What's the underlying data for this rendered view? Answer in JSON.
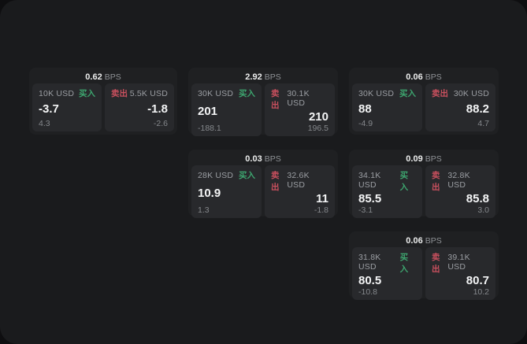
{
  "labels": {
    "bps": "BPS",
    "buy": "买入",
    "sell": "卖出"
  },
  "colors": {
    "buy": "#3da56f",
    "sell": "#c9505e"
  },
  "cards": [
    {
      "row": 1,
      "col": 1,
      "bps": "0.62",
      "buy": {
        "size": "10K USD",
        "value": "-3.7",
        "sub": "4.3"
      },
      "sell": {
        "size": "5.5K USD",
        "value": "-1.8",
        "sub": "-2.6"
      }
    },
    {
      "row": 1,
      "col": 2,
      "bps": "2.92",
      "buy": {
        "size": "30K USD",
        "value": "201",
        "sub": "-188.1"
      },
      "sell": {
        "size": "30.1K USD",
        "value": "210",
        "sub": "196.5"
      }
    },
    {
      "row": 1,
      "col": 3,
      "bps": "0.06",
      "buy": {
        "size": "30K USD",
        "value": "88",
        "sub": "-4.9"
      },
      "sell": {
        "size": "30K USD",
        "value": "88.2",
        "sub": "4.7"
      }
    },
    {
      "row": 2,
      "col": 2,
      "bps": "0.03",
      "buy": {
        "size": "28K USD",
        "value": "10.9",
        "sub": "1.3"
      },
      "sell": {
        "size": "32.6K USD",
        "value": "11",
        "sub": "-1.8"
      }
    },
    {
      "row": 2,
      "col": 3,
      "bps": "0.09",
      "buy": {
        "size": "34.1K USD",
        "value": "85.5",
        "sub": "-3.1"
      },
      "sell": {
        "size": "32.8K USD",
        "value": "85.8",
        "sub": "3.0"
      }
    },
    {
      "row": 3,
      "col": 3,
      "bps": "0.06",
      "buy": {
        "size": "31.8K USD",
        "value": "80.5",
        "sub": "-10.8"
      },
      "sell": {
        "size": "39.1K USD",
        "value": "80.7",
        "sub": "10.2"
      }
    }
  ]
}
